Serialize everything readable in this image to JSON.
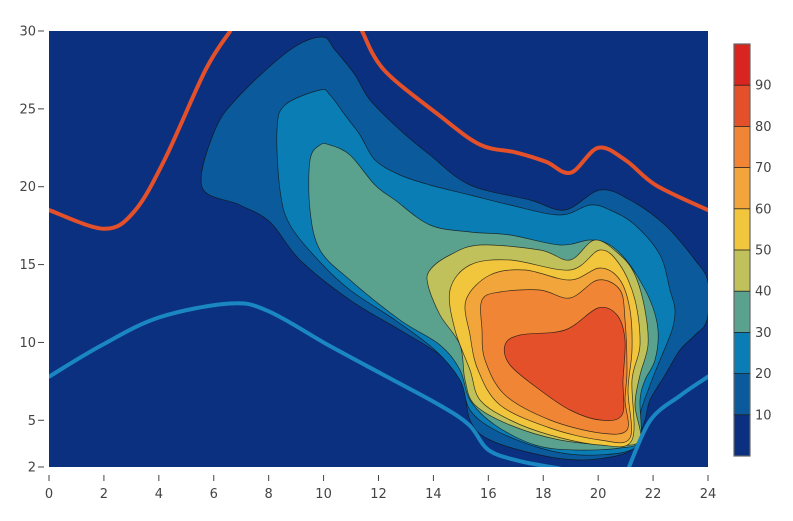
{
  "chart_data": {
    "type": "contour",
    "title": "",
    "xlabel": "",
    "ylabel": "",
    "xlim": [
      0,
      24
    ],
    "ylim": [
      2,
      30
    ],
    "x_ticks": [
      "0",
      "2",
      "4",
      "6",
      "8",
      "10",
      "12",
      "14",
      "16",
      "18",
      "20",
      "22",
      "24"
    ],
    "y_ticks": [
      "2",
      "5",
      "10",
      "15",
      "20",
      "25",
      "30"
    ],
    "y_tick_values": [
      2,
      5,
      10,
      15,
      20,
      25,
      30
    ],
    "x_tick_values": [
      0,
      2,
      4,
      6,
      8,
      10,
      12,
      14,
      16,
      18,
      20,
      22,
      24
    ],
    "background_color": "#0b3080",
    "contour_levels": [
      10,
      20,
      30,
      40,
      50,
      60,
      70,
      80
    ],
    "level_colors": [
      "#0b5a9b",
      "#0b7db5",
      "#5aa28d",
      "#c0c15a",
      "#f1c53c",
      "#f1a53b",
      "#ef8535",
      "#e3502a"
    ],
    "colorbar": {
      "range": [
        0,
        100
      ],
      "tick_labels": [
        "10",
        "20",
        "30",
        "40",
        "50",
        "60",
        "70",
        "80",
        "90"
      ],
      "tick_values": [
        10,
        20,
        30,
        40,
        50,
        60,
        70,
        80,
        90
      ],
      "band_colors": [
        "#0b3080",
        "#0b5a9b",
        "#0b7db5",
        "#5aa28d",
        "#c0c15a",
        "#f1c53c",
        "#f1a53b",
        "#ef8535",
        "#e3502a",
        "#d9251f"
      ]
    },
    "lines": [
      {
        "name": "upper-bound",
        "color": "#e3502a",
        "segments": [
          [
            [
              0,
              18.5
            ],
            [
              2,
              17.3
            ],
            [
              3.1,
              18.4
            ],
            [
              4.2,
              21.7
            ],
            [
              5.7,
              27.5
            ],
            [
              6.6,
              30
            ]
          ],
          [
            [
              11.4,
              30
            ],
            [
              12.2,
              27.5
            ],
            [
              14.2,
              24.6
            ],
            [
              15.7,
              22.7
            ],
            [
              17,
              22.2
            ],
            [
              18.1,
              21.6
            ],
            [
              19,
              20.9
            ],
            [
              20,
              22.5
            ],
            [
              21,
              21.7
            ],
            [
              22.1,
              20.1
            ],
            [
              24,
              18.5
            ]
          ]
        ]
      },
      {
        "name": "lower-bound",
        "color": "#1a87c2",
        "segments": [
          [
            [
              0,
              7.8
            ],
            [
              1.9,
              9.8
            ],
            [
              4,
              11.6
            ],
            [
              6.6,
              12.5
            ],
            [
              8,
              12
            ],
            [
              10.2,
              9.8
            ],
            [
              12.2,
              7.9
            ],
            [
              14.2,
              6
            ],
            [
              15.3,
              4.7
            ],
            [
              16,
              3.1
            ],
            [
              17.1,
              2.4
            ],
            [
              18.6,
              1.9
            ]
          ],
          [
            [
              21.1,
              1.9
            ],
            [
              21.9,
              5
            ],
            [
              23,
              6.6
            ],
            [
              24,
              7.8
            ]
          ]
        ]
      }
    ]
  }
}
